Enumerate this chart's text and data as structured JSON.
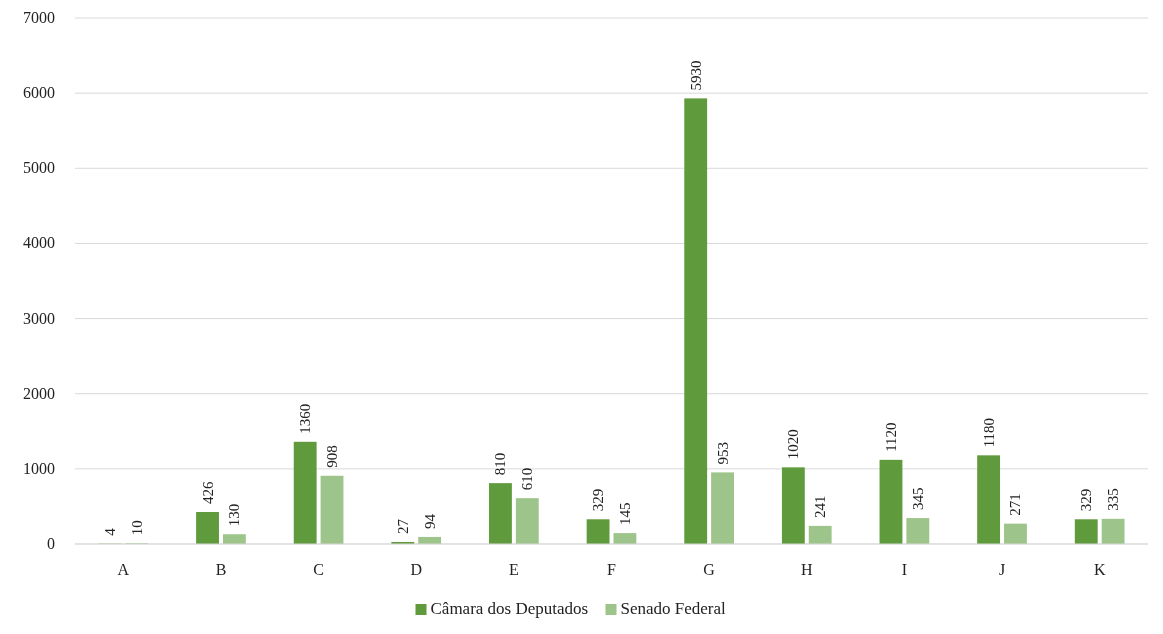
{
  "chart_data": {
    "type": "bar",
    "categories": [
      "A",
      "B",
      "C",
      "D",
      "E",
      "F",
      "G",
      "H",
      "I",
      "J",
      "K"
    ],
    "series": [
      {
        "name": "Câmara dos Deputados",
        "color": "#5f9a3c",
        "values": [
          4,
          426,
          1360,
          27,
          810,
          329,
          5930,
          1020,
          1120,
          1180,
          329
        ]
      },
      {
        "name": "Senado Federal",
        "color": "#9dc48a",
        "values": [
          10,
          130,
          908,
          94,
          610,
          145,
          953,
          241,
          345,
          271,
          335
        ]
      }
    ],
    "ylim": [
      0,
      7000
    ],
    "yticks": [
      0,
      1000,
      2000,
      3000,
      4000,
      5000,
      6000,
      7000
    ],
    "grid": "y",
    "legend": "bottom",
    "data_labels": true
  }
}
